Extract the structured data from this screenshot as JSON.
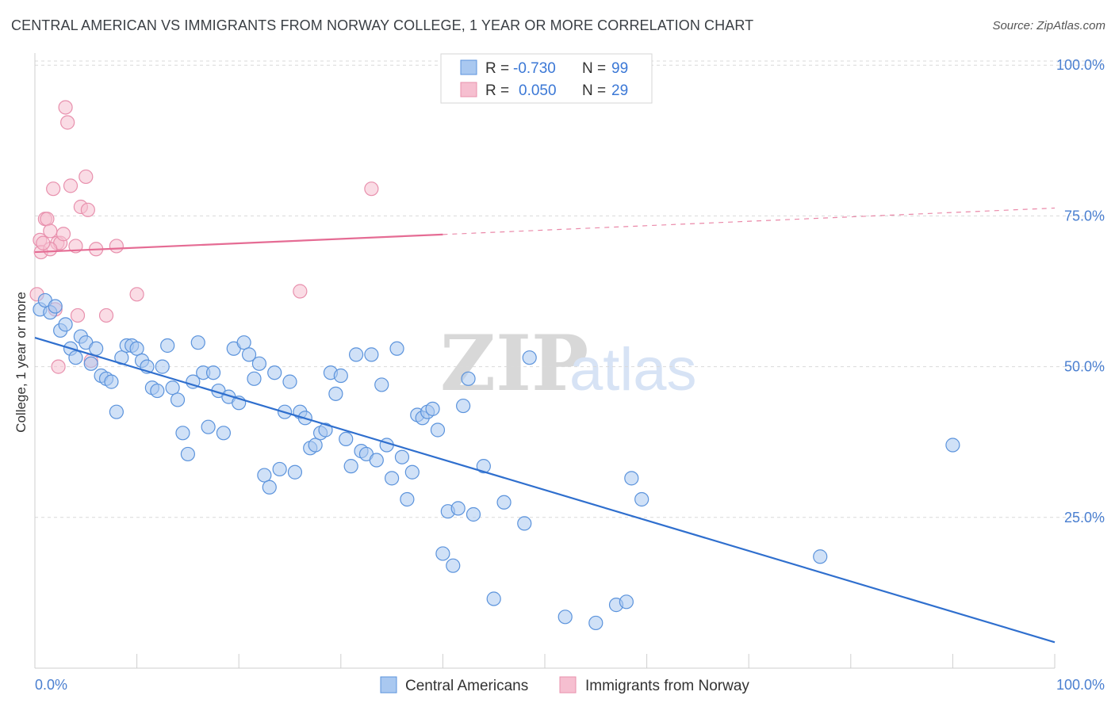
{
  "title": "CENTRAL AMERICAN VS IMMIGRANTS FROM NORWAY COLLEGE, 1 YEAR OR MORE CORRELATION CHART",
  "source": "Source: ZipAtlas.com",
  "watermark": {
    "zip": "ZIP",
    "atlas": "atlas"
  },
  "colors": {
    "blue_fill": "#a9c8f0",
    "blue_stroke": "#5b93dc",
    "blue_line": "#2f6fce",
    "pink_fill": "#f6bfd0",
    "pink_stroke": "#e890ad",
    "pink_line": "#e56c94",
    "grid": "#d9d9d9",
    "tick_text": "#4a7fd0"
  },
  "legend": {
    "rows": [
      {
        "r_label": "R =",
        "r_value": "-0.730",
        "n_label": "N =",
        "n_value": "99"
      },
      {
        "r_label": "R =",
        "r_value": "0.050",
        "n_label": "N =",
        "n_value": "29"
      }
    ]
  },
  "bottom_legend": {
    "series1": "Central Americans",
    "series2": "Immigrants from Norway"
  },
  "chart_data": {
    "type": "scatter",
    "xlabel": "",
    "ylabel": "College, 1 year or more",
    "xlim": [
      0,
      100
    ],
    "ylim": [
      0,
      102
    ],
    "x_tick_labels": [
      "0.0%",
      "100.0%"
    ],
    "y_ticks": [
      25,
      50,
      75,
      100
    ],
    "y_tick_labels": [
      "25.0%",
      "50.0%",
      "75.0%",
      "100.0%"
    ],
    "grid": "horizontal dashed",
    "legend_position": "top-center",
    "series": [
      {
        "name": "Central Americans",
        "trend": {
          "x0": 0,
          "y0": 54.8,
          "x1": 100,
          "y1": 4.3,
          "dashed_from": null
        },
        "points": [
          [
            0.5,
            59.5
          ],
          [
            1,
            61
          ],
          [
            1.5,
            59
          ],
          [
            2,
            60
          ],
          [
            2.5,
            56
          ],
          [
            3,
            57
          ],
          [
            3.5,
            53
          ],
          [
            4,
            51.5
          ],
          [
            4.5,
            55
          ],
          [
            5,
            54
          ],
          [
            5.5,
            50.5
          ],
          [
            6,
            53
          ],
          [
            6.5,
            48.5
          ],
          [
            7,
            48
          ],
          [
            7.5,
            47.5
          ],
          [
            8,
            42.5
          ],
          [
            8.5,
            51.5
          ],
          [
            9,
            53.5
          ],
          [
            9.5,
            53.5
          ],
          [
            10,
            53
          ],
          [
            10.5,
            51
          ],
          [
            11,
            50
          ],
          [
            11.5,
            46.5
          ],
          [
            12,
            46
          ],
          [
            12.5,
            50
          ],
          [
            13,
            53.5
          ],
          [
            13.5,
            46.5
          ],
          [
            14,
            44.5
          ],
          [
            14.5,
            39
          ],
          [
            15,
            35.5
          ],
          [
            15.5,
            47.5
          ],
          [
            16,
            54
          ],
          [
            16.5,
            49
          ],
          [
            17,
            40
          ],
          [
            17.5,
            49
          ],
          [
            18,
            46
          ],
          [
            18.5,
            39
          ],
          [
            19,
            45
          ],
          [
            19.5,
            53
          ],
          [
            20,
            44
          ],
          [
            20.5,
            54
          ],
          [
            21,
            52
          ],
          [
            21.5,
            48
          ],
          [
            22,
            50.5
          ],
          [
            22.5,
            32
          ],
          [
            23,
            30
          ],
          [
            23.5,
            49
          ],
          [
            24,
            33
          ],
          [
            24.5,
            42.5
          ],
          [
            25,
            47.5
          ],
          [
            25.5,
            32.5
          ],
          [
            26,
            42.5
          ],
          [
            26.5,
            41.5
          ],
          [
            27,
            36.5
          ],
          [
            27.5,
            37
          ],
          [
            28,
            39
          ],
          [
            28.5,
            39.5
          ],
          [
            29,
            49
          ],
          [
            29.5,
            45.5
          ],
          [
            30,
            48.5
          ],
          [
            30.5,
            38
          ],
          [
            31,
            33.5
          ],
          [
            31.5,
            52
          ],
          [
            32,
            36
          ],
          [
            32.5,
            35.5
          ],
          [
            33,
            52
          ],
          [
            33.5,
            34.5
          ],
          [
            34,
            47
          ],
          [
            34.5,
            37
          ],
          [
            35,
            31.5
          ],
          [
            35.5,
            53
          ],
          [
            36,
            35
          ],
          [
            36.5,
            28
          ],
          [
            37,
            32.5
          ],
          [
            37.5,
            42
          ],
          [
            38,
            41.5
          ],
          [
            38.5,
            42.5
          ],
          [
            39,
            43
          ],
          [
            39.5,
            39.5
          ],
          [
            40,
            19
          ],
          [
            40.5,
            26
          ],
          [
            41,
            17
          ],
          [
            41.5,
            26.5
          ],
          [
            42,
            43.5
          ],
          [
            42.5,
            48
          ],
          [
            43,
            25.5
          ],
          [
            44,
            33.5
          ],
          [
            45,
            11.5
          ],
          [
            46,
            27.5
          ],
          [
            48,
            24
          ],
          [
            48.5,
            51.5
          ],
          [
            52,
            8.5
          ],
          [
            55,
            7.5
          ],
          [
            57,
            10.5
          ],
          [
            58,
            11
          ],
          [
            58.5,
            31.5
          ],
          [
            59.5,
            28
          ],
          [
            77,
            18.5
          ],
          [
            90,
            37
          ]
        ]
      },
      {
        "name": "Immigrants from Norway",
        "trend": {
          "x0": 0,
          "y0": 69,
          "x1": 100,
          "y1": 76.3,
          "dashed_from": 40
        },
        "points": [
          [
            0.2,
            62
          ],
          [
            0.5,
            71
          ],
          [
            0.6,
            69
          ],
          [
            1,
            74.5
          ],
          [
            1.2,
            74.5
          ],
          [
            1.5,
            72.5
          ],
          [
            1.8,
            79.5
          ],
          [
            2,
            59.5
          ],
          [
            2.2,
            70.5
          ],
          [
            2.5,
            70.5
          ],
          [
            2.8,
            72
          ],
          [
            3,
            93
          ],
          [
            3.2,
            90.5
          ],
          [
            3.5,
            80
          ],
          [
            4,
            70
          ],
          [
            4.2,
            58.5
          ],
          [
            4.5,
            76.5
          ],
          [
            5,
            81.5
          ],
          [
            5.2,
            76
          ],
          [
            5.5,
            51
          ],
          [
            6,
            69.5
          ],
          [
            7,
            58.5
          ],
          [
            8,
            70
          ],
          [
            10,
            62
          ],
          [
            1.5,
            69.5
          ],
          [
            2.3,
            50
          ],
          [
            33,
            79.5
          ],
          [
            26,
            62.5
          ],
          [
            0.8,
            70.5
          ]
        ]
      }
    ]
  }
}
